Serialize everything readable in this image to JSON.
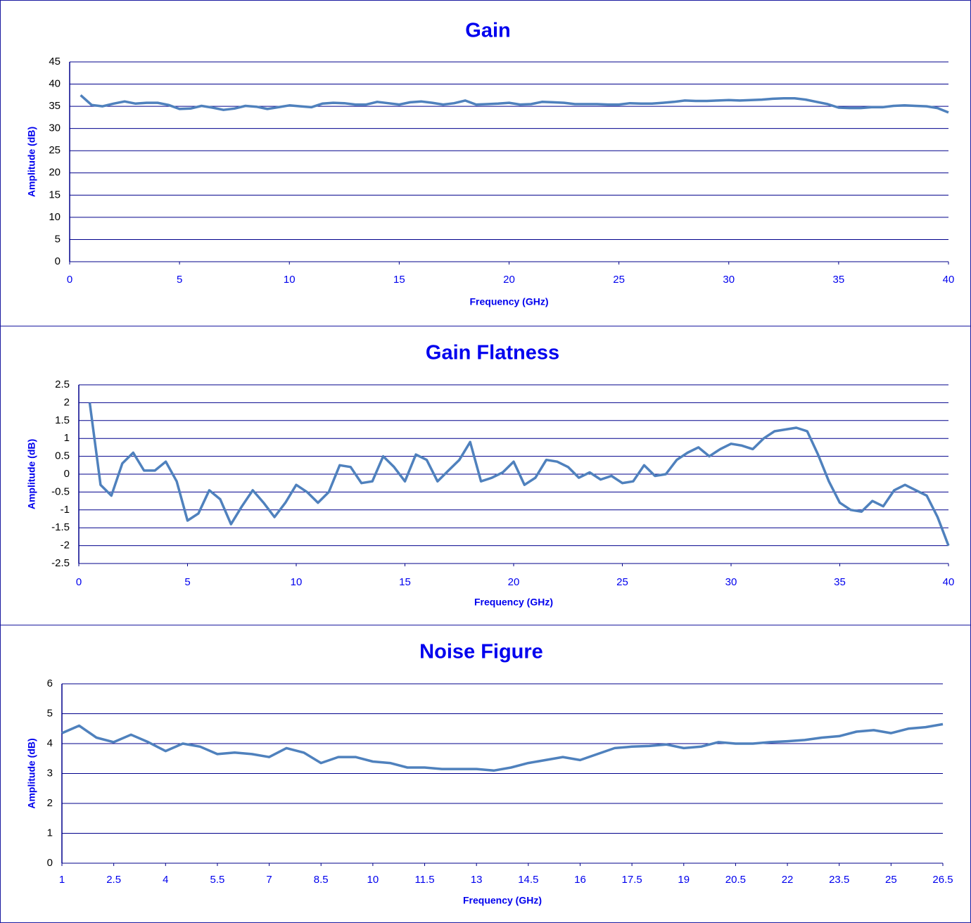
{
  "chart_data": [
    {
      "type": "line",
      "title": "Gain",
      "xlabel": "Frequency (GHz)",
      "ylabel": "Amplitude (dB)",
      "color": "#4f81bd",
      "grid": true,
      "xlim": [
        0,
        40
      ],
      "xticks": [
        0,
        5,
        10,
        15,
        20,
        25,
        30,
        35,
        40
      ],
      "ylim": [
        0,
        45
      ],
      "yticks": [
        0,
        5,
        10,
        15,
        20,
        25,
        30,
        35,
        40,
        45
      ],
      "x": [
        0.5,
        1,
        1.5,
        2,
        2.5,
        3,
        3.5,
        4,
        4.5,
        5,
        5.5,
        6,
        6.5,
        7,
        7.5,
        8,
        8.5,
        9,
        9.5,
        10,
        10.5,
        11,
        11.5,
        12,
        12.5,
        13,
        13.5,
        14,
        14.5,
        15,
        15.5,
        16,
        16.5,
        17,
        17.5,
        18,
        18.5,
        19,
        19.5,
        20,
        20.5,
        21,
        21.5,
        22,
        22.5,
        23,
        23.5,
        24,
        24.5,
        25,
        25.5,
        26,
        26.5,
        27,
        27.5,
        28,
        28.5,
        29,
        29.5,
        30,
        30.5,
        31,
        31.5,
        32,
        32.5,
        33,
        33.5,
        34,
        34.5,
        35,
        35.5,
        36,
        36.5,
        37,
        37.5,
        38,
        38.5,
        39,
        39.5,
        40
      ],
      "values": [
        37.5,
        35.3,
        35,
        35.6,
        36.1,
        35.6,
        35.8,
        35.8,
        35.3,
        34.4,
        34.5,
        35.1,
        34.7,
        34.2,
        34.5,
        35.1,
        34.9,
        34.4,
        34.8,
        35.2,
        35,
        34.8,
        35.6,
        35.8,
        35.7,
        35.4,
        35.4,
        36,
        35.7,
        35.4,
        35.9,
        36.1,
        35.8,
        35.4,
        35.7,
        36.3,
        35.4,
        35.5,
        35.6,
        35.8,
        35.4,
        35.5,
        36,
        35.9,
        35.8,
        35.5,
        35.5,
        35.5,
        35.4,
        35.4,
        35.7,
        35.6,
        35.6,
        35.8,
        36,
        36.3,
        36.2,
        36.2,
        36.3,
        36.4,
        36.3,
        36.4,
        36.5,
        36.7,
        36.8,
        36.8,
        36.5,
        36,
        35.5,
        34.7,
        34.6,
        34.6,
        34.8,
        34.8,
        35.1,
        35.2,
        35.1,
        35,
        34.6,
        33.6
      ]
    },
    {
      "type": "line",
      "title": "Gain Flatness",
      "xlabel": "Frequency (GHz)",
      "ylabel": "Amplitude (dB)",
      "color": "#4f81bd",
      "grid": true,
      "xlim": [
        0,
        40
      ],
      "xticks": [
        0,
        5,
        10,
        15,
        20,
        25,
        30,
        35,
        40
      ],
      "ylim": [
        -2.5,
        2.5
      ],
      "yticks": [
        -2.5,
        -2,
        -1.5,
        -1,
        -0.5,
        0,
        0.5,
        1,
        1.5,
        2,
        2.5
      ],
      "x": [
        0.5,
        1,
        1.5,
        2,
        2.5,
        3,
        3.5,
        4,
        4.5,
        5,
        5.5,
        6,
        6.5,
        7,
        7.5,
        8,
        8.5,
        9,
        9.5,
        10,
        10.5,
        11,
        11.5,
        12,
        12.5,
        13,
        13.5,
        14,
        14.5,
        15,
        15.5,
        16,
        16.5,
        17,
        17.5,
        18,
        18.5,
        19,
        19.5,
        20,
        20.5,
        21,
        21.5,
        22,
        22.5,
        23,
        23.5,
        24,
        24.5,
        25,
        25.5,
        26,
        26.5,
        27,
        27.5,
        28,
        28.5,
        29,
        29.5,
        30,
        30.5,
        31,
        31.5,
        32,
        32.5,
        33,
        33.5,
        34,
        34.5,
        35,
        35.5,
        36,
        36.5,
        37,
        37.5,
        38,
        38.5,
        39,
        39.5,
        40
      ],
      "values": [
        2,
        -0.3,
        -0.6,
        0.3,
        0.6,
        0.1,
        0.1,
        0.35,
        -0.2,
        -1.3,
        -1.1,
        -0.45,
        -0.7,
        -1.4,
        -0.9,
        -0.45,
        -0.8,
        -1.2,
        -0.8,
        -0.3,
        -0.5,
        -0.8,
        -0.5,
        0.25,
        0.2,
        -0.25,
        -0.2,
        0.5,
        0.2,
        -0.2,
        0.55,
        0.4,
        -0.2,
        0.1,
        0.4,
        0.9,
        -0.2,
        -0.1,
        0.05,
        0.35,
        -0.3,
        -0.1,
        0.4,
        0.35,
        0.2,
        -0.1,
        0.05,
        -0.15,
        -0.05,
        -0.25,
        -0.2,
        0.25,
        -0.05,
        0,
        0.4,
        0.6,
        0.75,
        0.5,
        0.7,
        0.85,
        0.8,
        0.7,
        1,
        1.2,
        1.25,
        1.3,
        1.2,
        0.55,
        -0.2,
        -0.8,
        -1,
        -1.05,
        -0.75,
        -0.9,
        -0.45,
        -0.3,
        -0.45,
        -0.6,
        -1.2,
        -2
      ]
    },
    {
      "type": "line",
      "title": "Noise Figure",
      "xlabel": "Frequency (GHz)",
      "ylabel": "Amplitude (dB)",
      "color": "#4f81bd",
      "grid": true,
      "xlim": [
        1,
        26.5
      ],
      "xticks": [
        1,
        2.5,
        4,
        5.5,
        7,
        8.5,
        10,
        11.5,
        13,
        14.5,
        16,
        17.5,
        19,
        20.5,
        22,
        23.5,
        25,
        26.5
      ],
      "ylim": [
        0,
        6
      ],
      "yticks": [
        0,
        1,
        2,
        3,
        4,
        5,
        6
      ],
      "x": [
        1,
        1.5,
        2,
        2.5,
        3,
        3.5,
        4,
        4.5,
        5,
        5.5,
        6,
        6.5,
        7,
        7.5,
        8,
        8.5,
        9,
        9.5,
        10,
        10.5,
        11,
        11.5,
        12,
        12.5,
        13,
        13.5,
        14,
        14.5,
        15,
        15.5,
        16,
        16.5,
        17,
        17.5,
        18,
        18.5,
        19,
        19.5,
        20,
        20.5,
        21,
        21.5,
        22,
        22.5,
        23,
        23.5,
        24,
        24.5,
        25,
        25.5,
        26,
        26.5
      ],
      "values": [
        4.35,
        4.6,
        4.2,
        4.05,
        4.3,
        4.05,
        3.75,
        4,
        3.9,
        3.65,
        3.7,
        3.65,
        3.55,
        3.85,
        3.7,
        3.35,
        3.55,
        3.55,
        3.4,
        3.35,
        3.2,
        3.2,
        3.15,
        3.15,
        3.15,
        3.1,
        3.2,
        3.35,
        3.45,
        3.55,
        3.45,
        3.65,
        3.85,
        3.9,
        3.92,
        3.97,
        3.85,
        3.9,
        4.05,
        4,
        4,
        4.05,
        4.08,
        4.12,
        4.2,
        4.25,
        4.4,
        4.45,
        4.35,
        4.5,
        4.55,
        4.65
      ]
    }
  ]
}
